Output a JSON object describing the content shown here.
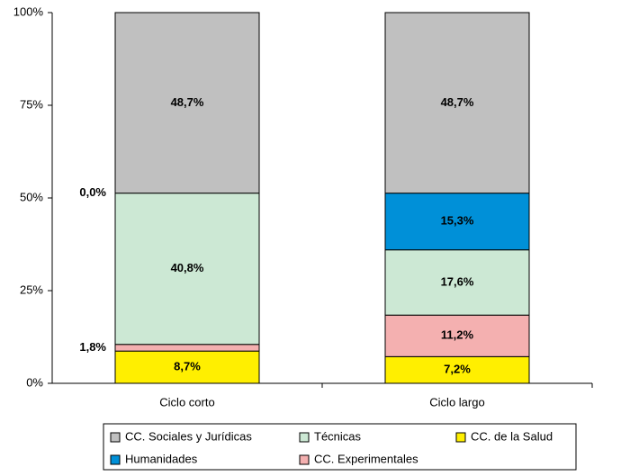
{
  "chart_data": {
    "type": "stacked_bar",
    "categories": [
      "Ciclo corto",
      "Ciclo largo"
    ],
    "series": [
      {
        "name": "CC. de la Salud",
        "color": "#ffef00",
        "values": [
          8.7,
          7.2
        ],
        "value_labels": [
          "8,7%",
          "7,2%"
        ]
      },
      {
        "name": "CC. Experimentales",
        "color": "#f4b0b0",
        "values": [
          1.8,
          11.2
        ],
        "value_labels": [
          "1,8%",
          "11,2%"
        ]
      },
      {
        "name": "Técnicas",
        "color": "#cce8d4",
        "values": [
          40.8,
          17.6
        ],
        "value_labels": [
          "40,8%",
          "17,6%"
        ]
      },
      {
        "name": "Humanidades",
        "color": "#0090d8",
        "values": [
          0.0,
          15.3
        ],
        "value_labels": [
          "0,0%",
          "15,3%"
        ]
      },
      {
        "name": "CC. Sociales y Jurídicas",
        "color": "#c0c0c0",
        "values": [
          48.7,
          48.7
        ],
        "value_labels": [
          "48,7%",
          "48,7%"
        ]
      }
    ],
    "ylim": [
      0,
      100
    ],
    "yticks": [
      {
        "value": 0,
        "label": "0%"
      },
      {
        "value": 25,
        "label": "25%"
      },
      {
        "value": 50,
        "label": "50%"
      },
      {
        "value": 75,
        "label": "75%"
      },
      {
        "value": 100,
        "label": "100%"
      }
    ]
  }
}
